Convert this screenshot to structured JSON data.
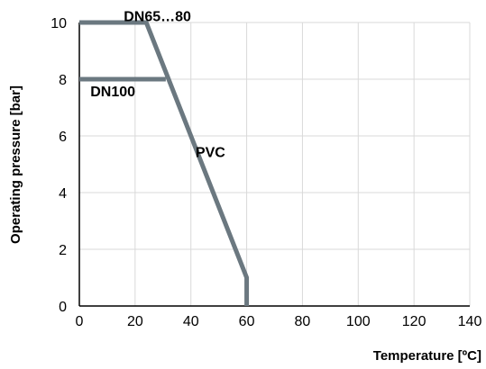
{
  "chart_data": {
    "type": "line",
    "title": "",
    "xlabel": "Temperature [ºC]",
    "ylabel": "Operating pressure [bar]",
    "xlim": [
      0,
      140
    ],
    "ylim": [
      0,
      10
    ],
    "x_ticks": [
      0,
      20,
      40,
      60,
      80,
      100,
      120,
      140
    ],
    "y_ticks": [
      0,
      2,
      4,
      6,
      8,
      10
    ],
    "grid": true,
    "series": [
      {
        "x": [
          0,
          24,
          60,
          60
        ],
        "y": [
          10,
          10,
          1,
          0
        ],
        "color": "#6b7880"
      },
      {
        "x": [
          0,
          31
        ],
        "y": [
          8,
          8
        ],
        "color": "#6b7880"
      }
    ],
    "annotations": [
      {
        "text": "DN65…80",
        "x": 28,
        "y": 10.05
      },
      {
        "text": "DN100",
        "x": 12,
        "y": 7.4
      },
      {
        "text": "PVC",
        "x": 47,
        "y": 5.25
      }
    ]
  }
}
